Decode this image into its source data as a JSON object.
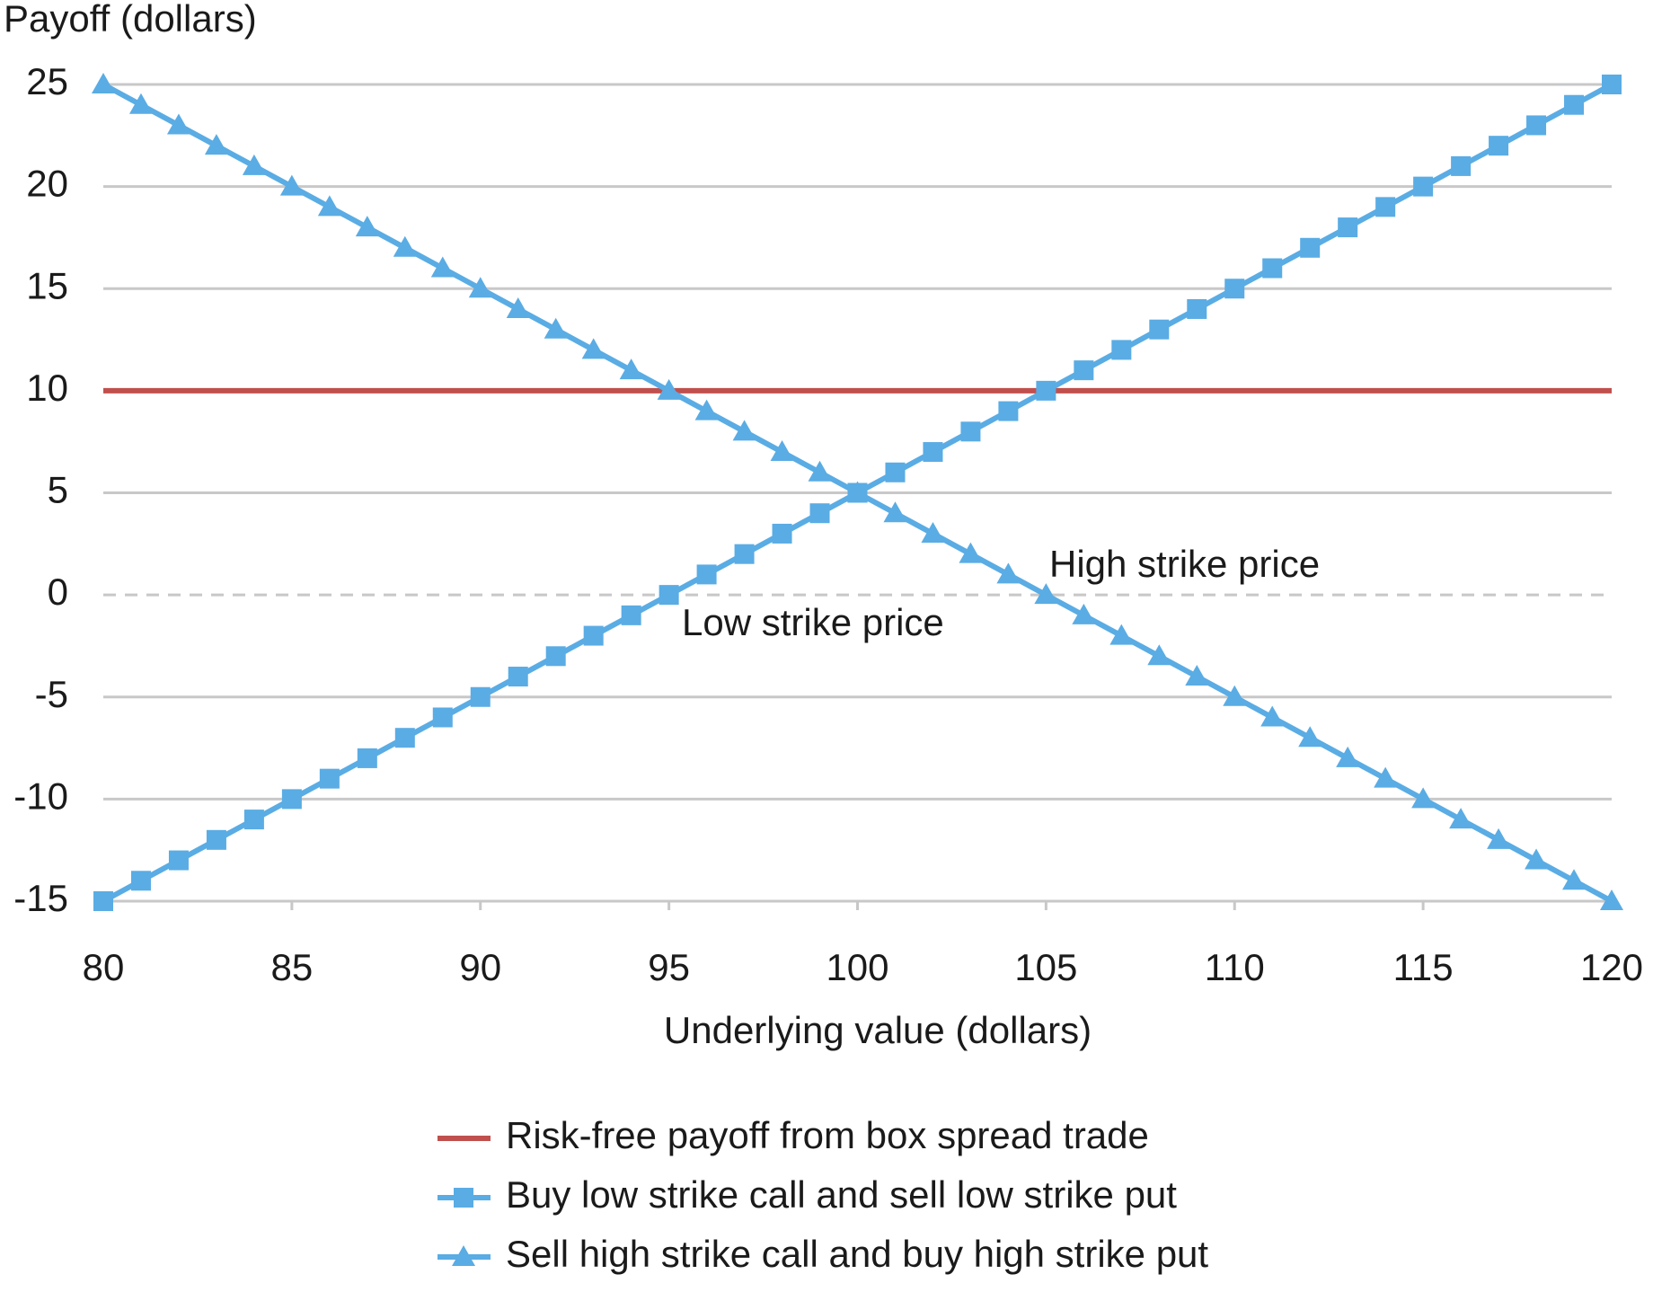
{
  "chart_data": {
    "type": "line",
    "y_label": "Payoff (dollars)",
    "x_label": "Underlying value (dollars)",
    "x": [
      80,
      81,
      82,
      83,
      84,
      85,
      86,
      87,
      88,
      89,
      90,
      91,
      92,
      93,
      94,
      95,
      96,
      97,
      98,
      99,
      100,
      101,
      102,
      103,
      104,
      105,
      106,
      107,
      108,
      109,
      110,
      111,
      112,
      113,
      114,
      115,
      116,
      117,
      118,
      119,
      120
    ],
    "series": [
      {
        "name": "Risk-free payoff from box spread trade",
        "color": "#c0504d",
        "marker": "none",
        "values": [
          10,
          10,
          10,
          10,
          10,
          10,
          10,
          10,
          10,
          10,
          10,
          10,
          10,
          10,
          10,
          10,
          10,
          10,
          10,
          10,
          10,
          10,
          10,
          10,
          10,
          10,
          10,
          10,
          10,
          10,
          10,
          10,
          10,
          10,
          10,
          10,
          10,
          10,
          10,
          10,
          10
        ]
      },
      {
        "name": "Buy low strike call and sell low strike put",
        "color": "#5aace4",
        "marker": "square",
        "values": [
          -15,
          -14,
          -13,
          -12,
          -11,
          -10,
          -9,
          -8,
          -7,
          -6,
          -5,
          -4,
          -3,
          -2,
          -1,
          0,
          1,
          2,
          3,
          4,
          5,
          6,
          7,
          8,
          9,
          10,
          11,
          12,
          13,
          14,
          15,
          16,
          17,
          18,
          19,
          20,
          21,
          22,
          23,
          24,
          25
        ]
      },
      {
        "name": "Sell high strike call and buy high strike put",
        "color": "#5aace4",
        "marker": "triangle",
        "values": [
          25,
          24,
          23,
          22,
          21,
          20,
          19,
          18,
          17,
          16,
          15,
          14,
          13,
          12,
          11,
          10,
          9,
          8,
          7,
          6,
          5,
          4,
          3,
          2,
          1,
          0,
          -1,
          -2,
          -3,
          -4,
          -5,
          -6,
          -7,
          -8,
          -9,
          -10,
          -11,
          -12,
          -13,
          -14,
          -15
        ]
      }
    ],
    "annotations": [
      "High strike price",
      "Low strike price"
    ],
    "xlim": [
      80,
      120
    ],
    "xticks": [
      80,
      85,
      90,
      95,
      100,
      105,
      110,
      115,
      120
    ],
    "ylim": [
      -15,
      25
    ],
    "yticks": [
      -15,
      -10,
      -5,
      0,
      5,
      10,
      15,
      20,
      25
    ],
    "grid": true,
    "legend": "bottom"
  }
}
